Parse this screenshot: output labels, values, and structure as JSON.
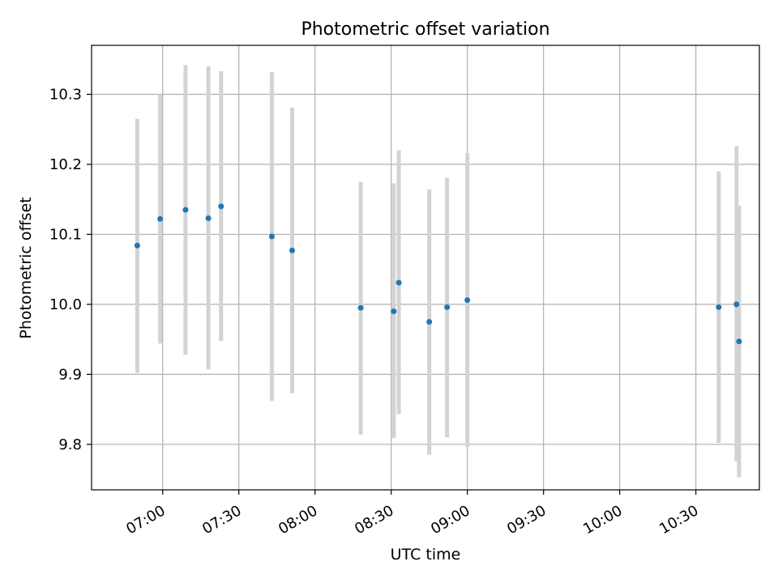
{
  "chart_data": {
    "type": "scatter",
    "title": "Photometric offset variation",
    "xlabel": "UTC time",
    "ylabel": "Photometric offset",
    "x_unit": "UTC time (HH:MM)",
    "xlim": [
      "06:32",
      "10:55"
    ],
    "ylim": [
      9.735,
      10.37
    ],
    "grid": true,
    "x_ticks": [
      "07:00",
      "07:30",
      "08:00",
      "08:30",
      "09:00",
      "09:30",
      "10:00",
      "10:30"
    ],
    "y_ticks": [
      9.8,
      9.9,
      10.0,
      10.1,
      10.2,
      10.3
    ],
    "y_tick_labels": [
      "9.8",
      "9.9",
      "10.0",
      "10.1",
      "10.2",
      "10.3"
    ],
    "marker_color": "#1f77b4",
    "errorbar_color": "#d3d3d3",
    "series": [
      {
        "points": [
          {
            "x": "06:50",
            "y": 10.084,
            "ylow": 9.902,
            "yhigh": 10.265
          },
          {
            "x": "06:59",
            "y": 10.122,
            "ylow": 9.944,
            "yhigh": 10.3
          },
          {
            "x": "07:09",
            "y": 10.135,
            "ylow": 9.928,
            "yhigh": 10.342
          },
          {
            "x": "07:18",
            "y": 10.123,
            "ylow": 9.907,
            "yhigh": 10.34
          },
          {
            "x": "07:23",
            "y": 10.14,
            "ylow": 9.948,
            "yhigh": 10.333
          },
          {
            "x": "07:43",
            "y": 10.097,
            "ylow": 9.862,
            "yhigh": 10.332
          },
          {
            "x": "07:51",
            "y": 10.077,
            "ylow": 9.873,
            "yhigh": 10.281
          },
          {
            "x": "08:18",
            "y": 9.995,
            "ylow": 9.814,
            "yhigh": 10.175
          },
          {
            "x": "08:31",
            "y": 9.99,
            "ylow": 9.809,
            "yhigh": 10.173
          },
          {
            "x": "08:33",
            "y": 10.031,
            "ylow": 9.843,
            "yhigh": 10.22
          },
          {
            "x": "08:45",
            "y": 9.975,
            "ylow": 9.785,
            "yhigh": 10.164
          },
          {
            "x": "08:52",
            "y": 9.996,
            "ylow": 9.81,
            "yhigh": 10.181
          },
          {
            "x": "09:00",
            "y": 10.006,
            "ylow": 9.796,
            "yhigh": 10.216
          },
          {
            "x": "10:39",
            "y": 9.996,
            "ylow": 9.802,
            "yhigh": 10.19
          },
          {
            "x": "10:46",
            "y": 10.0,
            "ylow": 9.776,
            "yhigh": 10.226
          },
          {
            "x": "10:47",
            "y": 9.947,
            "ylow": 9.753,
            "yhigh": 10.141
          }
        ]
      }
    ]
  }
}
